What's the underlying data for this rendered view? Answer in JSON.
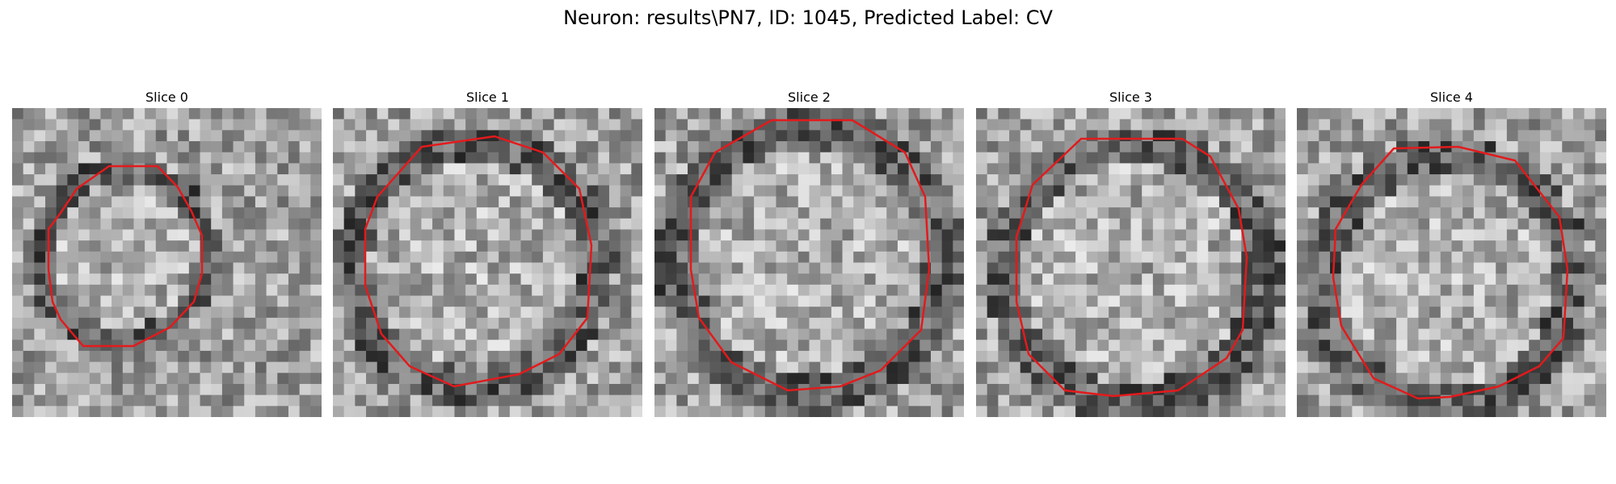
{
  "title": "Neuron: results\\PN7, ID: 1045, Predicted Label: CV",
  "contour_color": "#e31a1c",
  "slices": [
    {
      "label": "Slice 0"
    },
    {
      "label": "Slice 1"
    },
    {
      "label": "Slice 2"
    },
    {
      "label": "Slice 3"
    },
    {
      "label": "Slice 4"
    }
  ]
}
